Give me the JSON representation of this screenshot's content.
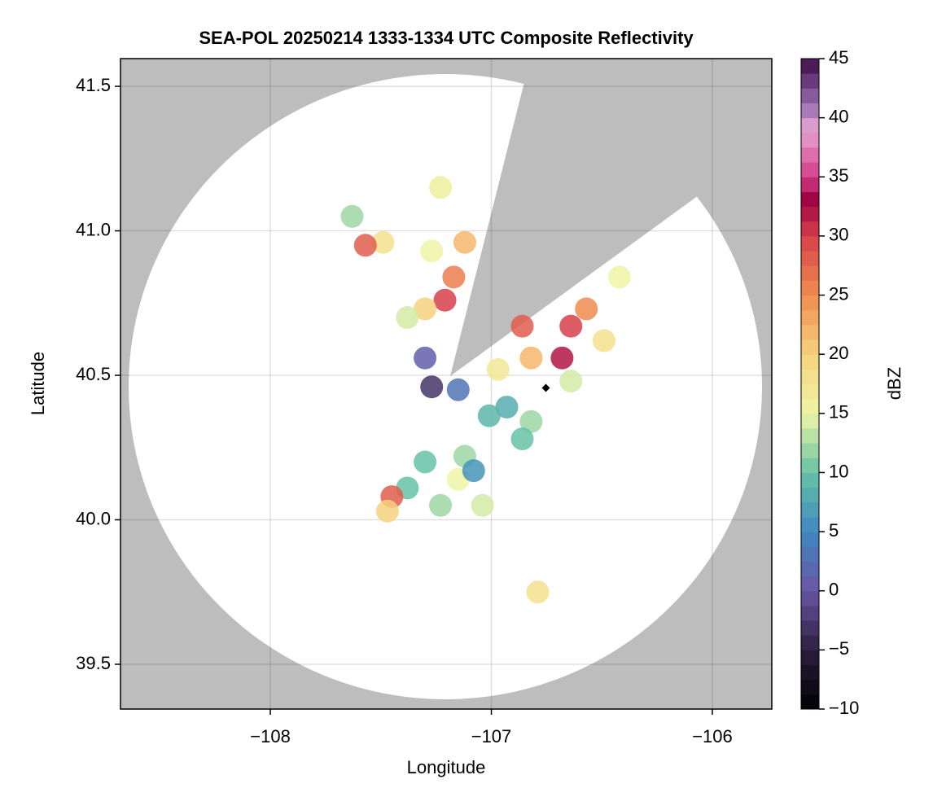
{
  "chart_data": {
    "type": "scatter",
    "title": "SEA-POL 20250214 1333-1334 UTC Composite Reflectivity",
    "x_label": "Longitude",
    "y_label": "Latitude",
    "colorbar_label": "dBZ",
    "xlim": [
      -108.678,
      -105.731
    ],
    "ylim": [
      39.345,
      41.596
    ],
    "xticks": [
      {
        "value": -108,
        "label": "−108"
      },
      {
        "value": -107,
        "label": "−107"
      },
      {
        "value": -106,
        "label": "−106"
      }
    ],
    "yticks": [
      {
        "value": 39.5,
        "label": "39.5"
      },
      {
        "value": 40.0,
        "label": "40.0"
      },
      {
        "value": 40.5,
        "label": "40.5"
      },
      {
        "value": 41.0,
        "label": "41.0"
      },
      {
        "value": 41.5,
        "label": "41.5"
      }
    ],
    "grid": true,
    "clim": [
      -10,
      45
    ],
    "cticks": [
      {
        "value": -10,
        "label": "−10"
      },
      {
        "value": -5,
        "label": "−5"
      },
      0,
      5,
      10,
      15,
      20,
      25,
      30,
      35,
      40,
      45
    ],
    "colorscale": [
      [
        -10,
        "#000000"
      ],
      [
        -5,
        "#2a1f3d"
      ],
      [
        0,
        "#6a55a5"
      ],
      [
        5,
        "#3f88c0"
      ],
      [
        10,
        "#66c2a4"
      ],
      [
        15,
        "#eef5a6"
      ],
      [
        20,
        "#f6d27e"
      ],
      [
        25,
        "#f08c4f"
      ],
      [
        30,
        "#d7404a"
      ],
      [
        33,
        "#9e0142"
      ],
      [
        35,
        "#d23c87"
      ],
      [
        39,
        "#e9a6d1"
      ],
      [
        41,
        "#9a70b5"
      ],
      [
        45,
        "#3f0c47"
      ]
    ],
    "x": [
      -106.86,
      -106.64,
      -106.68,
      -106.57,
      -106.82,
      -106.97,
      -106.49,
      -106.42,
      -106.64,
      -107.21,
      -107.17,
      -107.3,
      -107.38,
      -107.27,
      -107.12,
      -107.49,
      -107.57,
      -107.23,
      -107.63,
      -107.15,
      -107.27,
      -107.3,
      -106.93,
      -106.82,
      -106.86,
      -107.01,
      -107.12,
      -107.15,
      -107.3,
      -107.38,
      -107.45,
      -107.47,
      -107.23,
      -107.04,
      -107.08,
      -106.79
    ],
    "y": [
      40.67,
      40.67,
      40.56,
      40.73,
      40.56,
      40.52,
      40.62,
      40.84,
      40.48,
      40.76,
      40.84,
      40.73,
      40.7,
      40.93,
      40.96,
      40.96,
      40.95,
      41.15,
      41.05,
      40.45,
      40.46,
      40.56,
      40.39,
      40.34,
      40.28,
      40.36,
      40.22,
      40.14,
      40.2,
      40.11,
      40.08,
      40.03,
      40.05,
      40.05,
      40.17,
      39.75
    ],
    "values": [
      28,
      30,
      32,
      25,
      22,
      17,
      18,
      15,
      14,
      30,
      26,
      20,
      14,
      15,
      22,
      18,
      28,
      16,
      12,
      3,
      -3,
      1,
      8,
      12,
      10,
      9,
      12,
      15,
      10,
      10,
      28,
      20,
      12,
      14,
      6,
      18
    ]
  }
}
